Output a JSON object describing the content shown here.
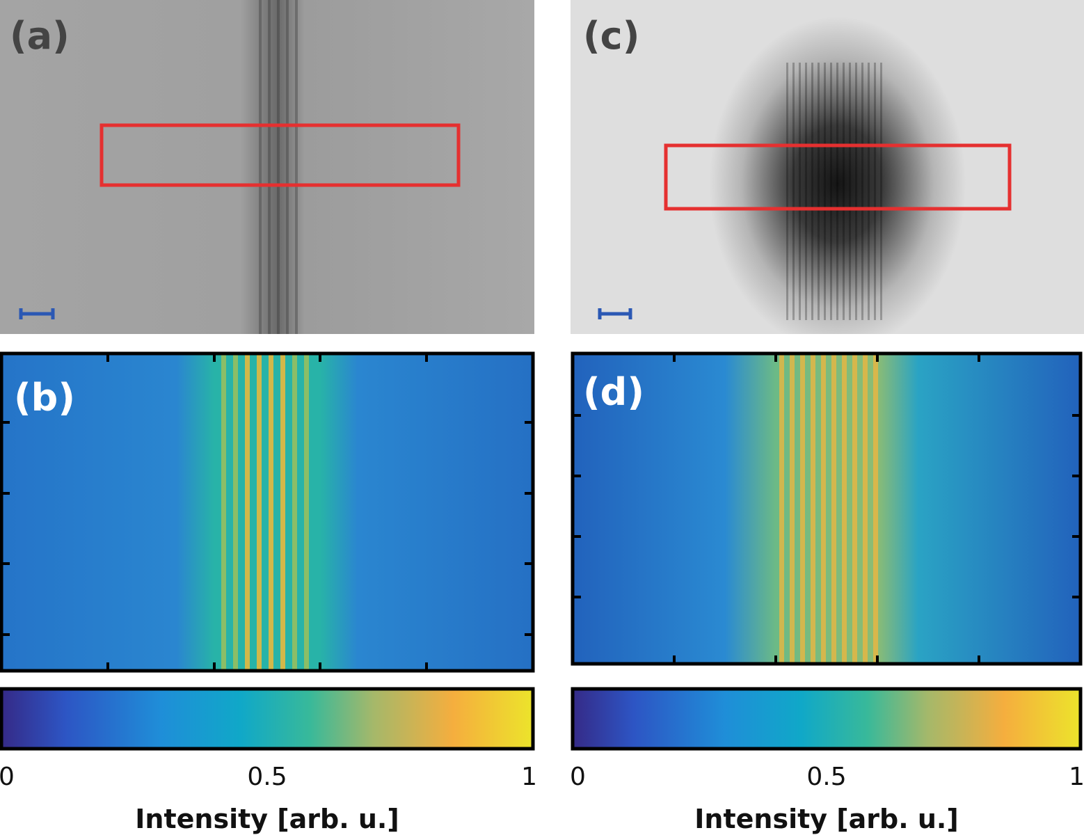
{
  "panels": [
    {
      "label": "(a)"
    },
    {
      "label": "(b)"
    },
    {
      "label": "(c)"
    },
    {
      "label": "(d)"
    }
  ],
  "colorbars": [
    {
      "lim": [
        0,
        1
      ],
      "ticks": [
        0,
        0.5,
        1
      ],
      "label": "Intensity [arb. u.]"
    },
    {
      "lim": [
        0,
        1
      ],
      "ticks": [
        0,
        0.5,
        1
      ],
      "label": "Intensity [arb. u.]"
    }
  ]
}
